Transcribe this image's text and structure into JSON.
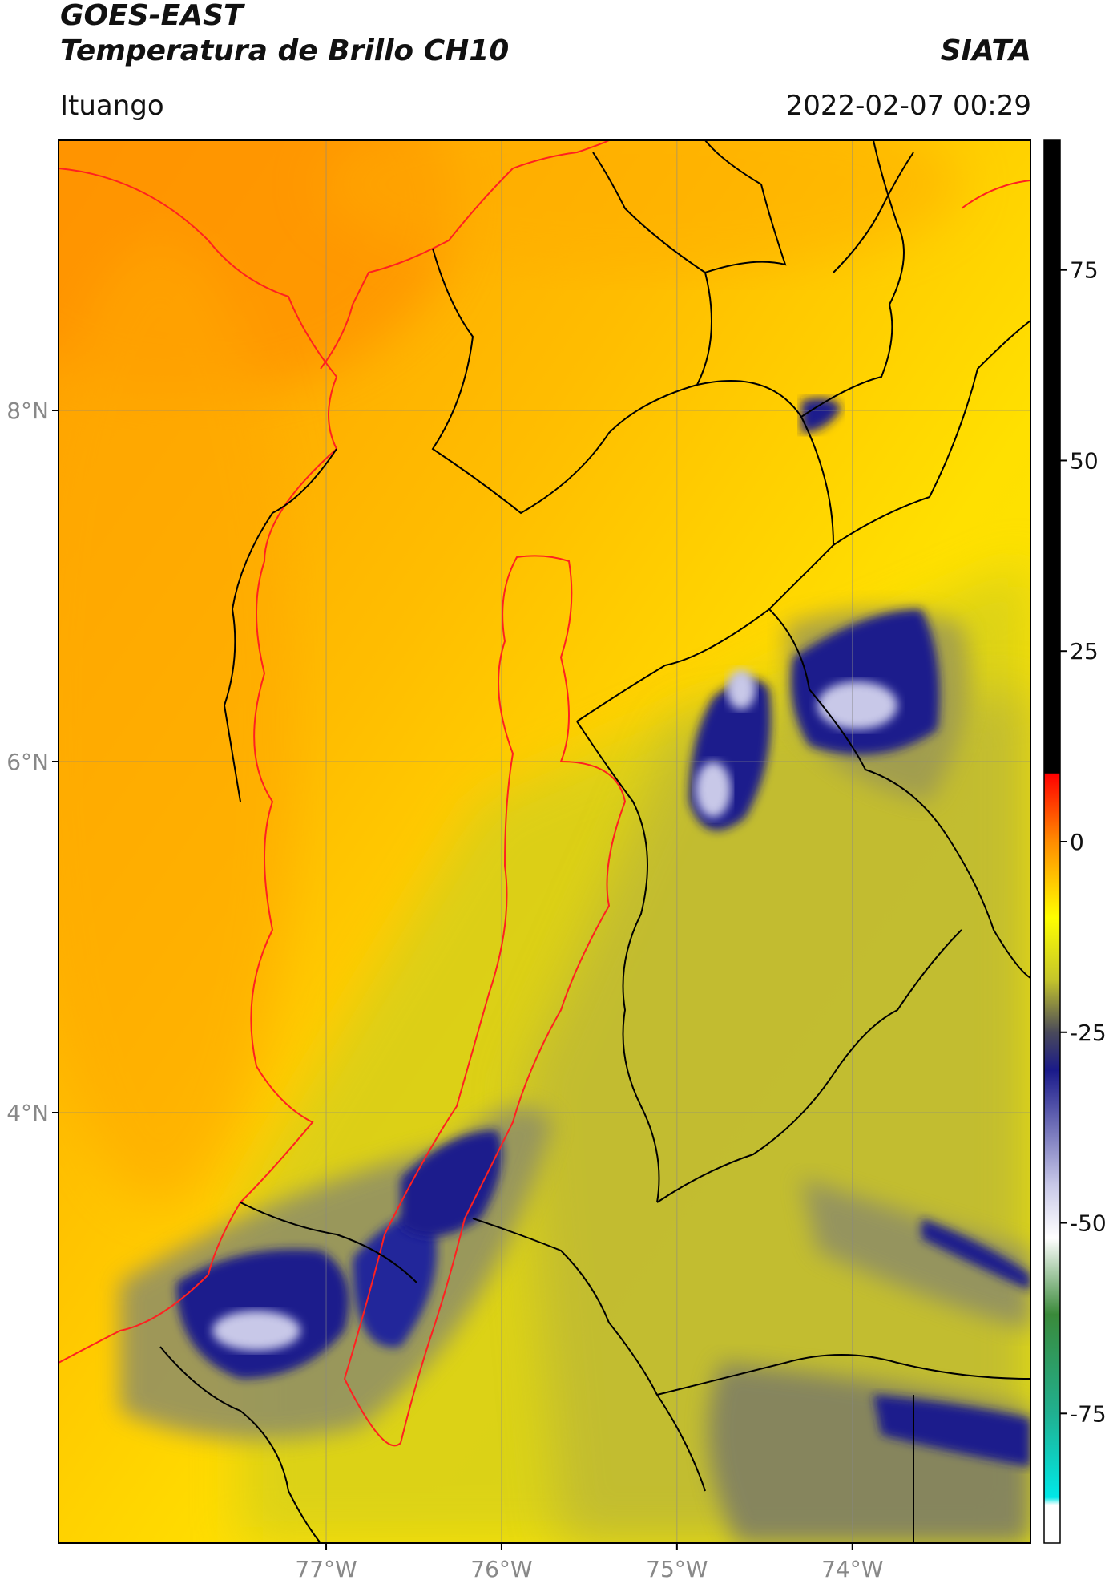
{
  "header": {
    "satellite": "GOES-EAST",
    "product": "Temperatura de Brillo CH10",
    "organization": "SIATA",
    "region": "Ituango",
    "timestamp": "2022-02-07 00:29"
  },
  "map": {
    "lat_labels": [
      "8°N",
      "6°N",
      "4°N"
    ],
    "lon_labels": [
      "77°W",
      "76°W",
      "75°W",
      "74°W"
    ],
    "lat_values": [
      8,
      6,
      4
    ],
    "lon_values": [
      -77,
      -76,
      -75,
      -74
    ],
    "colors": {
      "land_warm": "#ff9a00",
      "land_mid": "#ffd000",
      "yellow": "#f5ee00",
      "olive": "#c9c42a",
      "gray_cloud": "#8f8f6a",
      "deep_blue": "#1c1f8c",
      "light_cloud": "#c8c8e8",
      "coast_line": "#ff2020",
      "border_line": "#000000"
    }
  },
  "colorbar": {
    "tick_labels": [
      "75",
      "50",
      "25",
      "0",
      "-25",
      "-50",
      "-75"
    ],
    "tick_values": [
      75,
      50,
      25,
      0,
      -25,
      -50,
      -75
    ],
    "range": [
      -92,
      92
    ],
    "stops": [
      {
        "value": 92,
        "color": "#000000"
      },
      {
        "value": 9,
        "color": "#000000"
      },
      {
        "value": 8.9,
        "color": "#ff0000"
      },
      {
        "value": 0,
        "color": "#ff8c00"
      },
      {
        "value": -10,
        "color": "#ffff00"
      },
      {
        "value": -18,
        "color": "#c6c62a"
      },
      {
        "value": -25,
        "color": "#4a4a5a"
      },
      {
        "value": -30,
        "color": "#1a1a8a"
      },
      {
        "value": -45,
        "color": "#c8c8e8"
      },
      {
        "value": -52,
        "color": "#ffffff"
      },
      {
        "value": -62,
        "color": "#3a8a3a"
      },
      {
        "value": -75,
        "color": "#20b090"
      },
      {
        "value": -86,
        "color": "#00e8e8"
      },
      {
        "value": -87,
        "color": "#ffffff"
      },
      {
        "value": -92,
        "color": "#ffffff"
      }
    ]
  }
}
